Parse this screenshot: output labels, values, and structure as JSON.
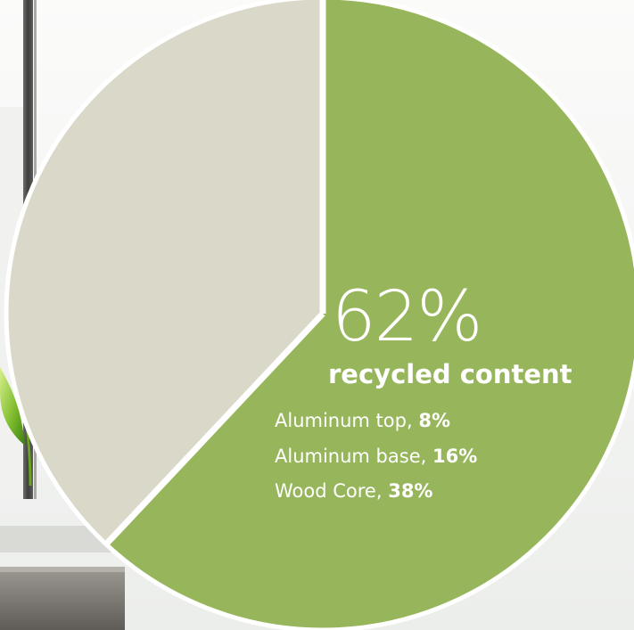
{
  "chart_data": {
    "type": "pie",
    "slices": [
      {
        "label": "recycled content",
        "value": 62,
        "color": "#97b65b"
      },
      {
        "label": "",
        "value": 38,
        "color": "#dad8c9"
      }
    ],
    "headline": {
      "value": "62%",
      "label": "recycled content"
    },
    "breakdown": [
      {
        "label": "Aluminum top, ",
        "value": "8%"
      },
      {
        "label": "Aluminum base, ",
        "value": "16%"
      },
      {
        "label": "Wood Core, ",
        "value": "38%"
      }
    ]
  },
  "colors": {
    "recycled": "#97b65b",
    "other": "#dad8c9",
    "separator": "#ffffff",
    "leaf": "#7fbf2e"
  },
  "decor": {
    "leaf_icon": "leaf-icon",
    "window_icon": "window-frame-icon"
  }
}
